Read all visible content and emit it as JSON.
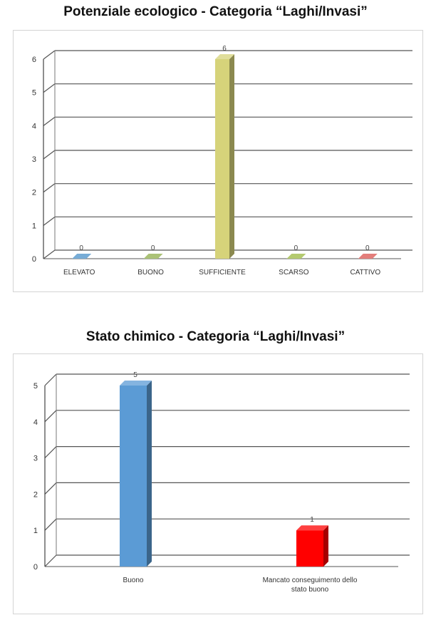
{
  "chart_data": [
    {
      "type": "bar",
      "title": "Potenziale ecologico - Categoria “Laghi/Invasi”",
      "categories": [
        "ELEVATO",
        "BUONO",
        "SUFFICIENTE",
        "SCARSO",
        "CATTIVO"
      ],
      "values": [
        0,
        0,
        6,
        0,
        0
      ],
      "colors": [
        "#4a90c8",
        "#8fae4a",
        "#d6d37a",
        "#9bb83f",
        "#d9534f"
      ],
      "ylim": [
        0,
        6
      ],
      "yticks": [
        0,
        1,
        2,
        3,
        4,
        5,
        6
      ],
      "grid": true,
      "legend": "none",
      "style": "3d"
    },
    {
      "type": "bar",
      "title": "Stato chimico - Categoria “Laghi/Invasi”",
      "categories": [
        "Buono",
        "Mancato conseguimento dello stato buono"
      ],
      "values": [
        5,
        1
      ],
      "colors": [
        "#5b9bd5",
        "#ff0000"
      ],
      "ylim": [
        0,
        5
      ],
      "yticks": [
        0,
        1,
        2,
        3,
        4,
        5
      ],
      "grid": true,
      "legend": "none",
      "style": "3d"
    }
  ]
}
